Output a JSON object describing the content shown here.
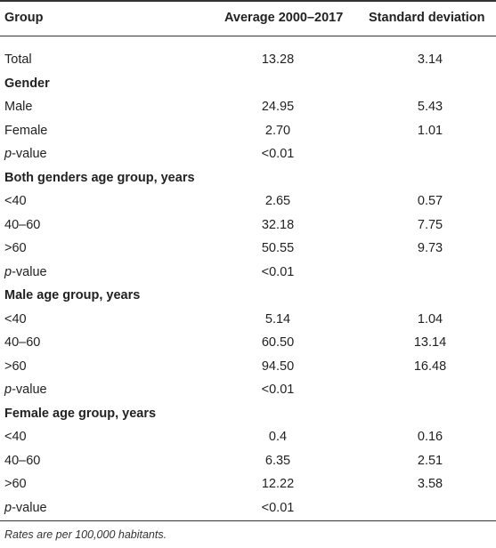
{
  "table": {
    "headers": [
      "Group",
      "Average 2000–2017",
      "Standard deviation"
    ],
    "rows": [
      {
        "type": "data",
        "label": "Total",
        "avg": "13.28",
        "sd": "3.14"
      },
      {
        "type": "section",
        "label": "Gender"
      },
      {
        "type": "data",
        "label": "Male",
        "avg": "24.95",
        "sd": "5.43"
      },
      {
        "type": "data",
        "label": "Female",
        "avg": "2.70",
        "sd": "1.01"
      },
      {
        "type": "pvalue",
        "label_italic": "p",
        "label_rest": "-value",
        "avg": "<0.01",
        "sd": ""
      },
      {
        "type": "section",
        "label": "Both genders age group, years"
      },
      {
        "type": "data",
        "label": "<40",
        "avg": "2.65",
        "sd": "0.57"
      },
      {
        "type": "data",
        "label": "40–60",
        "avg": "32.18",
        "sd": "7.75"
      },
      {
        "type": "data",
        "label": ">60",
        "avg": "50.55",
        "sd": "9.73"
      },
      {
        "type": "pvalue",
        "label_italic": "p",
        "label_rest": "-value",
        "avg": "<0.01",
        "sd": ""
      },
      {
        "type": "section",
        "label": "Male age group, years"
      },
      {
        "type": "data",
        "label": "<40",
        "avg": "5.14",
        "sd": "1.04"
      },
      {
        "type": "data",
        "label": "40–60",
        "avg": "60.50",
        "sd": "13.14"
      },
      {
        "type": "data",
        "label": ">60",
        "avg": "94.50",
        "sd": "16.48"
      },
      {
        "type": "pvalue",
        "label_italic": "p",
        "label_rest": "-value",
        "avg": "<0.01",
        "sd": ""
      },
      {
        "type": "section",
        "label": "Female age group, years"
      },
      {
        "type": "data",
        "label": "<40",
        "avg": "0.4",
        "sd": "0.16"
      },
      {
        "type": "data",
        "label": "40–60",
        "avg": "6.35",
        "sd": "2.51"
      },
      {
        "type": "data",
        "label": ">60",
        "avg": "12.22",
        "sd": "3.58"
      },
      {
        "type": "pvalue",
        "label_italic": "p",
        "label_rest": "-value",
        "avg": "<0.01",
        "sd": ""
      }
    ]
  },
  "footnote": "Rates are per 100,000 habitants."
}
